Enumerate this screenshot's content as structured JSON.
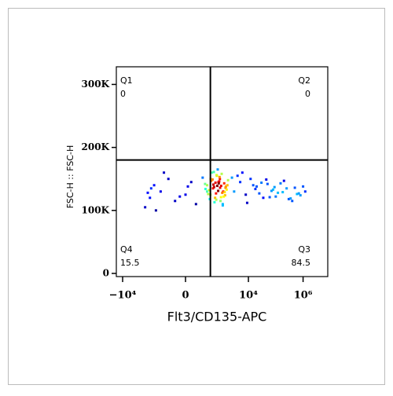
{
  "chart_data": {
    "type": "scatter",
    "xlabel": "Flt3/CD135-APC",
    "ylabel": "FSC-H :: FSC-H",
    "xscale": "biexponential",
    "colormap": "jet",
    "xlim": [
      -17000,
      8000000
    ],
    "ylim": [
      -5000,
      328000
    ],
    "xticks": [
      {
        "value": -10000,
        "label": "−10⁴"
      },
      0,
      {
        "value": 10000,
        "label": "10⁴"
      },
      {
        "value": 1000000,
        "label": "10⁶"
      }
    ],
    "yticks": [
      0,
      {
        "value": 100000,
        "label": "100K"
      },
      {
        "value": 200000,
        "label": "200K"
      },
      {
        "value": 300000,
        "label": "300K"
      }
    ],
    "gates": {
      "x": 400,
      "y": 180000
    },
    "quadrants": [
      {
        "name": "Q1",
        "value": 0
      },
      {
        "name": "Q2",
        "value": 0
      },
      {
        "name": "Q3",
        "value": 84.5
      },
      {
        "name": "Q4",
        "value": 15.5
      }
    ],
    "x": [
      300,
      500,
      800,
      1200,
      400,
      900,
      1500,
      600,
      250,
      700,
      1100,
      350,
      1800,
      450,
      950,
      550,
      1300,
      650,
      200,
      1000,
      750,
      1600,
      380,
      850,
      1400,
      520,
      1150,
      680,
      300,
      920,
      480,
      1250,
      620,
      780,
      1050,
      330,
      1700,
      570,
      880,
      430,
      1350,
      720,
      260,
      990,
      540,
      1450,
      660,
      820,
      410,
      1150,
      3000,
      5000,
      8000,
      12000,
      20000,
      35000,
      50000,
      80000,
      120000,
      200000,
      300000,
      500000,
      800000,
      1200000,
      4000,
      9000,
      15000,
      25000,
      45000,
      70000,
      100000,
      150000,
      250000,
      400000,
      600000,
      1000000,
      6000,
      18000,
      30000,
      60000,
      90000,
      180000,
      350000,
      700000,
      2500,
      -1500,
      -1000,
      -700,
      -400,
      -200,
      -100,
      0,
      50,
      100,
      -900,
      -300,
      -600,
      -1200,
      20,
      -50
    ],
    "y": [
      140000,
      135000,
      145000,
      130000,
      125000,
      150000,
      138000,
      120000,
      142000,
      155000,
      128000,
      132000,
      148000,
      160000,
      115000,
      137000,
      143000,
      127000,
      152000,
      139000,
      165000,
      133000,
      118000,
      146000,
      124000,
      141000,
      110000,
      156000,
      130000,
      136000,
      149000,
      122000,
      144000,
      131000,
      158000,
      126000,
      140000,
      113000,
      153000,
      147000,
      129000,
      139000,
      134000,
      121000,
      161000,
      136000,
      117000,
      143000,
      150000,
      108000,
      130000,
      145000,
      125000,
      150000,
      138000,
      120000,
      142000,
      133000,
      128000,
      147000,
      118000,
      136000,
      124000,
      130000,
      155000,
      112000,
      140000,
      127000,
      149000,
      131000,
      122000,
      143000,
      135000,
      115000,
      126000,
      138000,
      160000,
      134000,
      144000,
      121000,
      137000,
      129000,
      119000,
      127000,
      152000,
      105000,
      120000,
      140000,
      130000,
      150000,
      115000,
      125000,
      145000,
      110000,
      135000,
      160000,
      100000,
      128000,
      138000,
      122000
    ]
  }
}
